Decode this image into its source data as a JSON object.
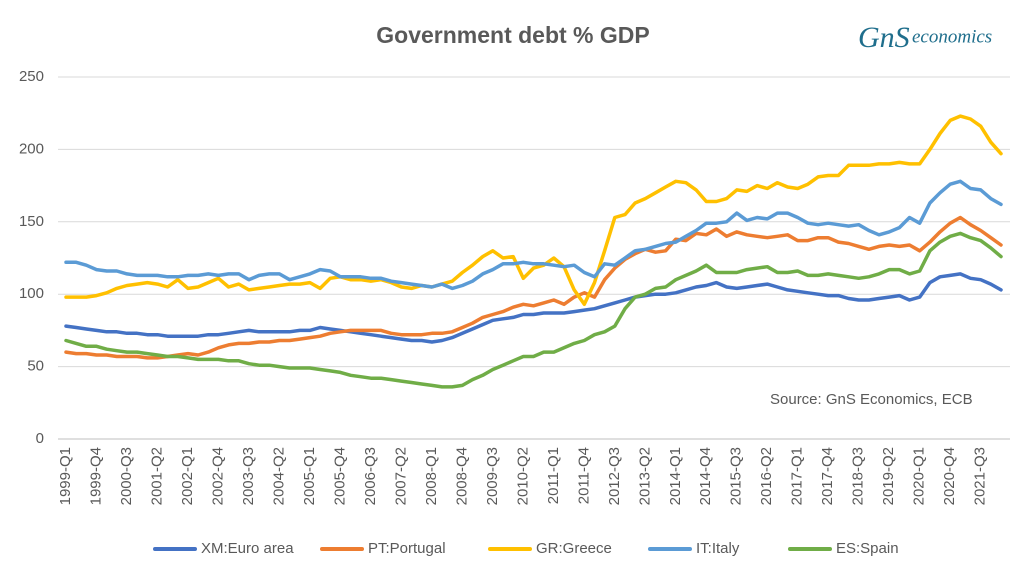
{
  "chart_data": {
    "type": "line",
    "title": "Government debt % GDP",
    "logo": [
      "GnS",
      "economics"
    ],
    "annotation": "Source: GnS Economics, ECB",
    "categories": [
      "1999-Q1",
      null,
      null,
      "1999-Q4",
      null,
      null,
      "2000-Q3",
      null,
      null,
      "2001-Q2",
      null,
      null,
      "2002-Q1",
      null,
      null,
      "2002-Q4",
      null,
      null,
      "2003-Q3",
      null,
      null,
      "2004-Q2",
      null,
      null,
      "2005-Q1",
      null,
      null,
      "2005-Q4",
      null,
      null,
      "2006-Q3",
      null,
      null,
      "2007-Q2",
      null,
      null,
      "2008-Q1",
      null,
      null,
      "2008-Q4",
      null,
      null,
      "2009-Q3",
      null,
      null,
      "2010-Q2",
      null,
      null,
      "2011-Q1",
      null,
      null,
      "2011-Q4",
      null,
      null,
      "2012-Q3",
      null,
      null,
      "2013-Q2",
      null,
      null,
      "2014-Q1",
      null,
      null,
      "2014-Q4",
      null,
      null,
      "2015-Q3",
      null,
      null,
      "2016-Q2",
      null,
      null,
      "2017-Q1",
      null,
      null,
      "2017-Q4",
      null,
      null,
      "2018-Q3",
      null,
      null,
      "2019-Q2",
      null,
      null,
      "2020-Q1",
      null,
      null,
      "2020-Q4",
      null,
      null,
      "2021-Q3",
      null,
      null
    ],
    "series": [
      {
        "name": "XM:Euro area",
        "color": "#4472c4",
        "values": [
          78,
          77,
          76,
          75,
          74,
          74,
          73,
          73,
          72,
          72,
          71,
          71,
          71,
          71,
          72,
          72,
          73,
          74,
          75,
          74,
          74,
          74,
          74,
          75,
          75,
          77,
          76,
          75,
          74,
          73,
          72,
          71,
          70,
          69,
          68,
          68,
          67,
          68,
          70,
          73,
          76,
          79,
          82,
          83,
          84,
          86,
          86,
          87,
          87,
          87,
          88,
          89,
          90,
          92,
          94,
          96,
          98,
          99,
          100,
          100,
          101,
          103,
          105,
          106,
          108,
          105,
          104,
          105,
          106,
          107,
          105,
          103,
          102,
          101,
          100,
          99,
          99,
          97,
          96,
          96,
          97,
          98,
          99,
          96,
          98,
          108,
          112,
          113,
          114,
          111,
          110,
          107,
          103
        ]
      },
      {
        "name": "PT:Portugal",
        "color": "#ed7d31",
        "values": [
          60,
          59,
          59,
          58,
          58,
          57,
          57,
          57,
          56,
          56,
          57,
          58,
          59,
          58,
          60,
          63,
          65,
          66,
          66,
          67,
          67,
          68,
          68,
          69,
          70,
          71,
          73,
          74,
          75,
          75,
          75,
          75,
          73,
          72,
          72,
          72,
          73,
          73,
          74,
          77,
          80,
          84,
          86,
          88,
          91,
          93,
          92,
          94,
          96,
          93,
          98,
          101,
          98,
          110,
          118,
          124,
          128,
          131,
          129,
          130,
          138,
          137,
          142,
          141,
          145,
          140,
          143,
          141,
          140,
          139,
          140,
          141,
          137,
          137,
          139,
          139,
          136,
          135,
          133,
          131,
          133,
          134,
          133,
          134,
          130,
          136,
          143,
          149,
          153,
          148,
          144,
          139,
          134
        ]
      },
      {
        "name": "GR:Greece",
        "color": "#ffc000",
        "values": [
          98,
          98,
          98,
          99,
          101,
          104,
          106,
          107,
          108,
          107,
          105,
          110,
          104,
          105,
          108,
          111,
          105,
          107,
          103,
          104,
          105,
          106,
          107,
          107,
          108,
          104,
          111,
          112,
          110,
          110,
          109,
          110,
          108,
          105,
          104,
          106,
          105,
          107,
          109,
          115,
          120,
          126,
          130,
          125,
          126,
          111,
          118,
          120,
          125,
          119,
          103,
          93,
          108,
          130,
          153,
          155,
          163,
          166,
          170,
          174,
          178,
          177,
          172,
          164,
          164,
          166,
          172,
          171,
          175,
          173,
          177,
          174,
          173,
          176,
          181,
          182,
          182,
          189,
          189,
          189,
          190,
          190,
          191,
          190,
          190,
          200,
          211,
          220,
          223,
          221,
          216,
          205,
          197
        ]
      },
      {
        "name": "IT:Italy",
        "color": "#5b9bd5",
        "values": [
          122,
          122,
          120,
          117,
          116,
          116,
          114,
          113,
          113,
          113,
          112,
          112,
          113,
          113,
          114,
          113,
          114,
          114,
          110,
          113,
          114,
          114,
          110,
          112,
          114,
          117,
          116,
          112,
          112,
          112,
          111,
          111,
          109,
          108,
          107,
          106,
          105,
          107,
          104,
          106,
          109,
          114,
          117,
          121,
          121,
          122,
          121,
          121,
          120,
          119,
          120,
          115,
          112,
          121,
          120,
          125,
          130,
          131,
          133,
          135,
          136,
          140,
          144,
          149,
          149,
          150,
          156,
          151,
          153,
          152,
          156,
          156,
          153,
          149,
          148,
          149,
          148,
          147,
          148,
          144,
          141,
          143,
          146,
          153,
          149,
          163,
          170,
          176,
          178,
          173,
          172,
          166,
          162
        ]
      },
      {
        "name": "ES:Spain",
        "color": "#70ad47",
        "values": [
          68,
          66,
          64,
          64,
          62,
          61,
          60,
          60,
          59,
          58,
          57,
          57,
          56,
          55,
          55,
          55,
          54,
          54,
          52,
          51,
          51,
          50,
          49,
          49,
          49,
          48,
          47,
          46,
          44,
          43,
          42,
          42,
          41,
          40,
          39,
          38,
          37,
          36,
          36,
          37,
          41,
          44,
          48,
          51,
          54,
          57,
          57,
          60,
          60,
          63,
          66,
          68,
          72,
          74,
          78,
          90,
          98,
          100,
          104,
          105,
          110,
          113,
          116,
          120,
          115,
          115,
          115,
          117,
          118,
          119,
          115,
          115,
          116,
          113,
          113,
          114,
          113,
          112,
          111,
          112,
          114,
          117,
          117,
          114,
          116,
          130,
          136,
          140,
          142,
          139,
          137,
          132,
          126
        ]
      }
    ],
    "ylim": [
      0,
      250
    ],
    "yticks": [
      0,
      50,
      100,
      150,
      200,
      250
    ],
    "grid": true
  }
}
